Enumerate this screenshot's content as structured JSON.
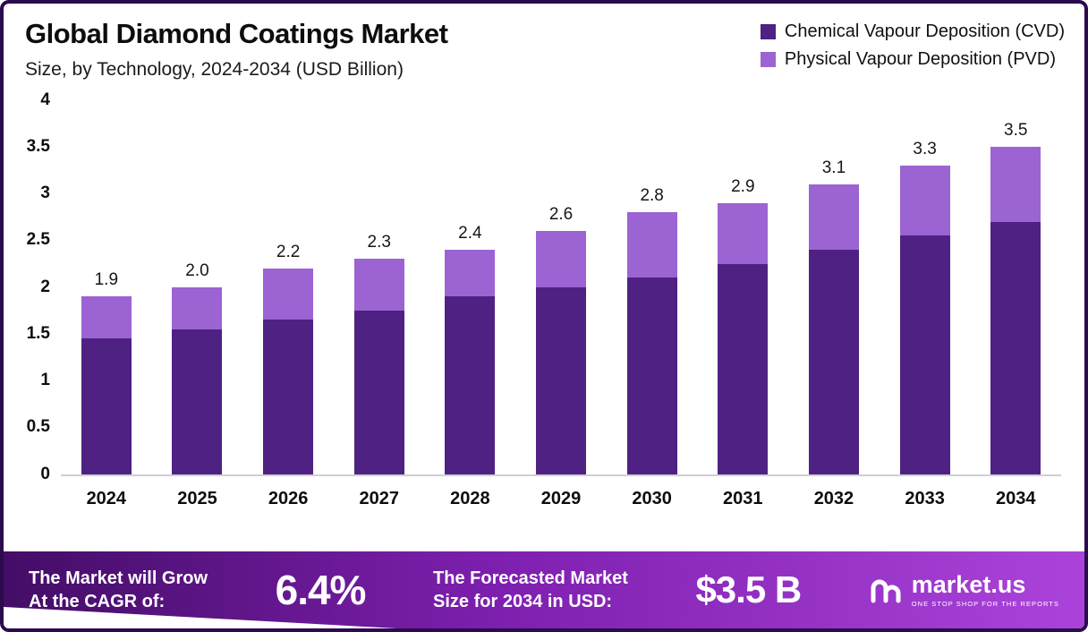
{
  "header": {
    "title": "Global Diamond Coatings Market",
    "subtitle": "Size, by Technology, 2024-2034 (USD Billion)"
  },
  "chart_data": {
    "type": "bar",
    "stacked": true,
    "title": "Global Diamond Coatings Market Size, by Technology, 2024-2034 (USD Billion)",
    "xlabel": "",
    "ylabel": "USD Billion",
    "ylim": [
      0,
      4
    ],
    "grid": false,
    "legend_position": "top-right",
    "categories": [
      "2024",
      "2025",
      "2026",
      "2027",
      "2028",
      "2029",
      "2030",
      "2031",
      "2032",
      "2033",
      "2034"
    ],
    "series": [
      {
        "name": "Chemical Vapour Deposition (CVD)",
        "color": "#4e2183",
        "values": [
          1.45,
          1.55,
          1.65,
          1.75,
          1.9,
          2.0,
          2.1,
          2.25,
          2.4,
          2.55,
          2.7
        ]
      },
      {
        "name": "Physical Vapour Deposition (PVD)",
        "color": "#9c63d3",
        "values": [
          0.45,
          0.45,
          0.55,
          0.55,
          0.5,
          0.6,
          0.7,
          0.65,
          0.7,
          0.75,
          0.8
        ]
      }
    ],
    "totals": [
      1.9,
      2.0,
      2.2,
      2.3,
      2.4,
      2.6,
      2.8,
      2.9,
      3.1,
      3.3,
      3.5
    ],
    "ytick_labels": [
      "4",
      "3.5",
      "3",
      "2.5",
      "2",
      "1.5",
      "1",
      "0.5",
      "0"
    ]
  },
  "footer": {
    "cagr_label": "The Market will Grow\nAt the CAGR of:",
    "cagr_value": "6.4%",
    "forecast_label": "The Forecasted Market\nSize for 2034 in USD:",
    "forecast_value": "$3.5 B",
    "brand": "market.us",
    "brand_tagline": "ONE STOP SHOP FOR THE REPORTS"
  },
  "colors": {
    "cvd": "#4e2183",
    "pvd": "#9c63d3",
    "border": "#2b0a4d",
    "banner_gradient_start": "#430d66",
    "banner_gradient_end": "#ab43da"
  }
}
